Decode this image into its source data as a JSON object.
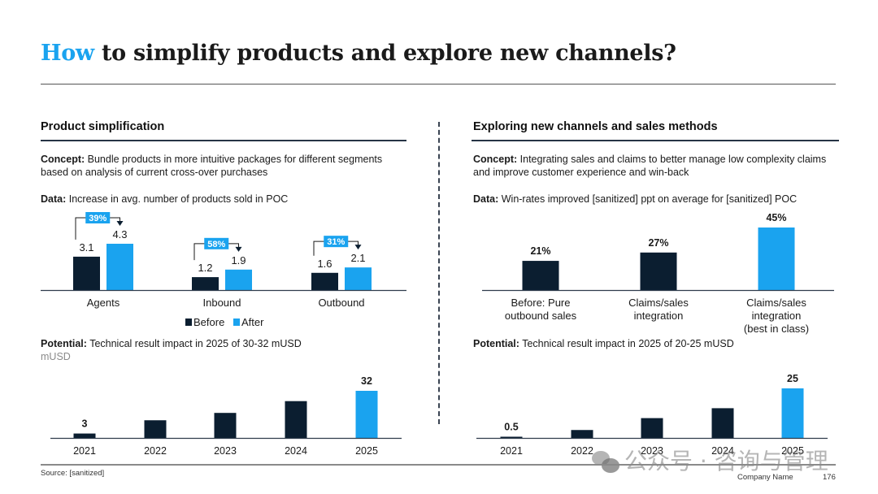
{
  "title": {
    "accent": "How",
    "rest": " to simplify products and explore new channels?"
  },
  "colors": {
    "accent": "#1aa3ef",
    "dark": "#0b1e30",
    "text": "#1a1a1a"
  },
  "left": {
    "heading": "Product simplification",
    "concept_label": "Concept:",
    "concept_text": " Bundle products in more intuitive packages for different segments based on analysis of current cross-over purchases",
    "data_label": "Data:",
    "data_text": " Increase in avg. number of products sold in POC",
    "potential_label": "Potential:",
    "potential_text": " Technical result impact in 2025 of 30-32 mUSD",
    "unit": "mUSD"
  },
  "right": {
    "heading": "Exploring new channels and sales methods",
    "concept_label": "Concept:",
    "concept_text": " Integrating sales and claims to better manage low complexity claims and improve customer experience and win-back",
    "data_label": "Data:",
    "data_text": " Win-rates improved [sanitized] ppt on average for [sanitized] POC",
    "potential_label": "Potential:",
    "potential_text": " Technical result impact in 2025 of 20-25 mUSD"
  },
  "footer": {
    "source": "Source: [sanitized]",
    "company": "Company Name",
    "page": "176"
  },
  "watermark": {
    "text": "公众号 · 咨询与管理"
  },
  "chart_data": [
    {
      "id": "products-sold",
      "type": "bar",
      "title": "Increase in avg. number of products sold in POC",
      "categories": [
        "Agents",
        "Inbound",
        "Outbound"
      ],
      "series": [
        {
          "name": "Before",
          "color": "#0b1e30",
          "values": [
            3.1,
            1.2,
            1.6
          ],
          "labels": [
            "3.1",
            "1.2",
            "1.6"
          ]
        },
        {
          "name": "After",
          "color": "#1aa3ef",
          "values": [
            4.3,
            1.9,
            2.1
          ],
          "labels": [
            "4.3",
            "1.9",
            "2.1"
          ]
        }
      ],
      "annotations": [
        "39%",
        "58%",
        "31%"
      ],
      "legend": {
        "position": "bottom",
        "entries": [
          "Before",
          "After"
        ]
      },
      "ylim": [
        0,
        4.3
      ],
      "grid": false
    },
    {
      "id": "left-potential",
      "type": "bar",
      "title": "Technical result impact in 2025 of 30-32 mUSD",
      "ylabel": "mUSD",
      "categories": [
        "2021",
        "2022",
        "2023",
        "2024",
        "2025"
      ],
      "values": [
        3,
        12,
        17,
        25,
        32
      ],
      "labels": [
        "3",
        "",
        "",
        "",
        "32"
      ],
      "highlight_index": 4,
      "ylim": [
        0,
        32
      ],
      "grid": false
    },
    {
      "id": "win-rates",
      "type": "bar",
      "title": "Win-rates improved [sanitized] ppt on average for [sanitized] POC",
      "categories": [
        "Before: Pure outbound sales",
        "Claims/sales integration",
        "Claims/sales integration (best in class)"
      ],
      "category_lines": [
        [
          "Before: Pure",
          "outbound sales"
        ],
        [
          "Claims/sales",
          "integration"
        ],
        [
          "Claims/sales",
          "integration",
          "(best in class)"
        ]
      ],
      "values": [
        21,
        27,
        45
      ],
      "labels": [
        "21%",
        "27%",
        "45%"
      ],
      "highlight_index": 2,
      "ylim": [
        0,
        45
      ],
      "grid": false
    },
    {
      "id": "right-potential",
      "type": "bar",
      "title": "Technical result impact in 2025 of 20-25 mUSD",
      "categories": [
        "2021",
        "2022",
        "2023",
        "2024",
        "2025"
      ],
      "values": [
        0.5,
        4,
        10,
        15,
        25
      ],
      "labels": [
        "0.5",
        "",
        "",
        "",
        "25"
      ],
      "highlight_index": 4,
      "ylim": [
        0,
        25
      ],
      "grid": false
    }
  ]
}
